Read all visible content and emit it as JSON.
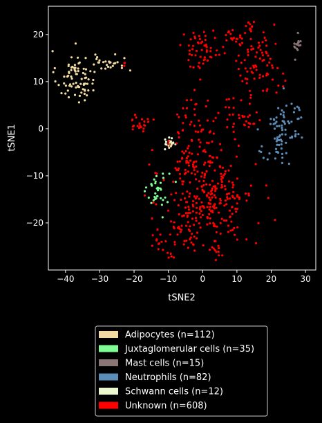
{
  "chart_data": {
    "type": "scatter",
    "xlabel": "tSNE2",
    "ylabel": "tSNE1",
    "xlim": [
      -45,
      33
    ],
    "ylim": [
      -30,
      26
    ],
    "xticks": [
      -40,
      -30,
      -20,
      -10,
      0,
      10,
      20,
      30
    ],
    "yticks": [
      -20,
      -10,
      0,
      10,
      20
    ],
    "grid": false,
    "legend_position": "bottom-center",
    "series": [
      {
        "name": "Adipocytes (n=112)",
        "color": "#f2dba3",
        "clusters": [
          {
            "center": [
              -37,
              11
            ],
            "spread": [
              2.8,
              2.8
            ],
            "count": 80
          },
          {
            "center": [
              -27,
              14
            ],
            "spread": [
              3.2,
              0.9
            ],
            "count": 24
          },
          {
            "center": [
              -10,
              -3
            ],
            "spread": [
              0.9,
              0.5
            ],
            "count": 8
          }
        ]
      },
      {
        "name": "Juxtaglomerular cells (n=35)",
        "color": "#7ffc93",
        "clusters": [
          {
            "center": [
              -13,
              -13
            ],
            "spread": [
              1.6,
              2.2
            ],
            "count": 35
          }
        ]
      },
      {
        "name": "Mast cells (n=15)",
        "color": "#8b7575",
        "clusters": [
          {
            "center": [
              27.8,
              17.5
            ],
            "spread": [
              0.7,
              1.1
            ],
            "count": 15
          }
        ]
      },
      {
        "name": "Neutrophils (n=82)",
        "color": "#5b8db8",
        "clusters": [
          {
            "center": [
              24,
              1
            ],
            "spread": [
              2.8,
              2.8
            ],
            "count": 60
          },
          {
            "center": [
              22,
              -5
            ],
            "spread": [
              2.2,
              2.2
            ],
            "count": 22
          }
        ]
      },
      {
        "name": "Schwann cells (n=12)",
        "color": "#ebf7cf",
        "clusters": [
          {
            "center": [
              -9.5,
              -3
            ],
            "spread": [
              1.0,
              0.6
            ],
            "count": 12
          }
        ]
      },
      {
        "name": "Unknown (n=608)",
        "color": "#ff0000",
        "clusters": [
          {
            "center": [
              2,
              -14
            ],
            "spread": [
              6.5,
              6.0
            ],
            "count": 290
          },
          {
            "center": [
              0,
              17
            ],
            "spread": [
              3.5,
              2.0
            ],
            "count": 55
          },
          {
            "center": [
              16,
              14
            ],
            "spread": [
              3.5,
              3.2
            ],
            "count": 75
          },
          {
            "center": [
              -2,
              1
            ],
            "spread": [
              3.0,
              3.2
            ],
            "count": 40
          },
          {
            "center": [
              -18,
              1.5
            ],
            "spread": [
              1.3,
              1.6
            ],
            "count": 22
          },
          {
            "center": [
              11,
              3
            ],
            "spread": [
              3.5,
              2.0
            ],
            "count": 35
          },
          {
            "center": [
              9,
              19.5
            ],
            "spread": [
              1.5,
              0.8
            ],
            "count": 16
          },
          {
            "center": [
              14,
              22
            ],
            "spread": [
              1.0,
              0.8
            ],
            "count": 10
          },
          {
            "center": [
              -13,
              -24
            ],
            "spread": [
              1.2,
              1.0
            ],
            "count": 12
          },
          {
            "center": [
              -6,
              -21
            ],
            "spread": [
              1.5,
              2.5
            ],
            "count": 18
          },
          {
            "center": [
              -4,
              -7
            ],
            "spread": [
              2.0,
              1.5
            ],
            "count": 20
          },
          {
            "center": [
              -9,
              -27
            ],
            "spread": [
              0.8,
              0.5
            ],
            "count": 5
          },
          {
            "center": [
              -23,
              13.5
            ],
            "spread": [
              0.4,
              0.3
            ],
            "count": 3
          },
          {
            "center": [
              4,
              -26
            ],
            "spread": [
              1.5,
              0.8
            ],
            "count": 7
          }
        ]
      }
    ]
  }
}
